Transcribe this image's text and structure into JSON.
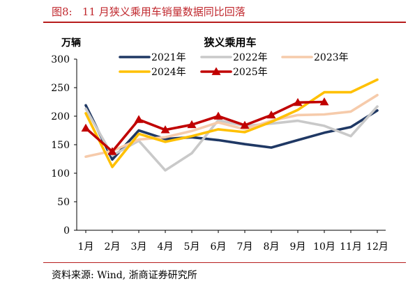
{
  "figure": {
    "title": "图8:   11 月狭义乘用车销量数据同比回落",
    "source": "资料来源:  Wind, 浙商证券研究所"
  },
  "chart_data": {
    "type": "line",
    "title": "狭义乘用车",
    "ylabel": "万辆",
    "xlabel": "",
    "categories": [
      "1月",
      "2月",
      "3月",
      "4月",
      "5月",
      "6月",
      "7月",
      "8月",
      "9月",
      "10月",
      "11月",
      "12月"
    ],
    "ylim": [
      0,
      300
    ],
    "yticks": [
      0,
      50,
      100,
      150,
      200,
      250,
      300
    ],
    "grid": false,
    "legend_position": "top-center",
    "series": [
      {
        "name": "2021年",
        "color": "#1f3864",
        "marker": "none",
        "values": [
          219,
          124,
          175,
          160,
          163,
          158,
          151,
          145,
          158,
          171,
          181,
          210
        ]
      },
      {
        "name": "2022年",
        "color": "#c9c9c9",
        "marker": "none",
        "values": [
          213,
          131,
          157,
          105,
          135,
          193,
          183,
          187,
          192,
          183,
          165,
          217
        ]
      },
      {
        "name": "2023年",
        "color": "#f6cbab",
        "marker": "none",
        "values": [
          129,
          139,
          159,
          163,
          174,
          189,
          177,
          192,
          202,
          203,
          208,
          237
        ]
      },
      {
        "name": "2024年",
        "color": "#ffc000",
        "marker": "none",
        "values": [
          205,
          111,
          169,
          155,
          165,
          177,
          172,
          190,
          211,
          242,
          242,
          264
        ]
      },
      {
        "name": "2025年",
        "color": "#c00000",
        "marker": "triangle",
        "values": [
          179,
          138,
          194,
          176,
          185,
          200,
          184,
          202,
          224,
          225,
          null,
          null
        ]
      }
    ]
  }
}
